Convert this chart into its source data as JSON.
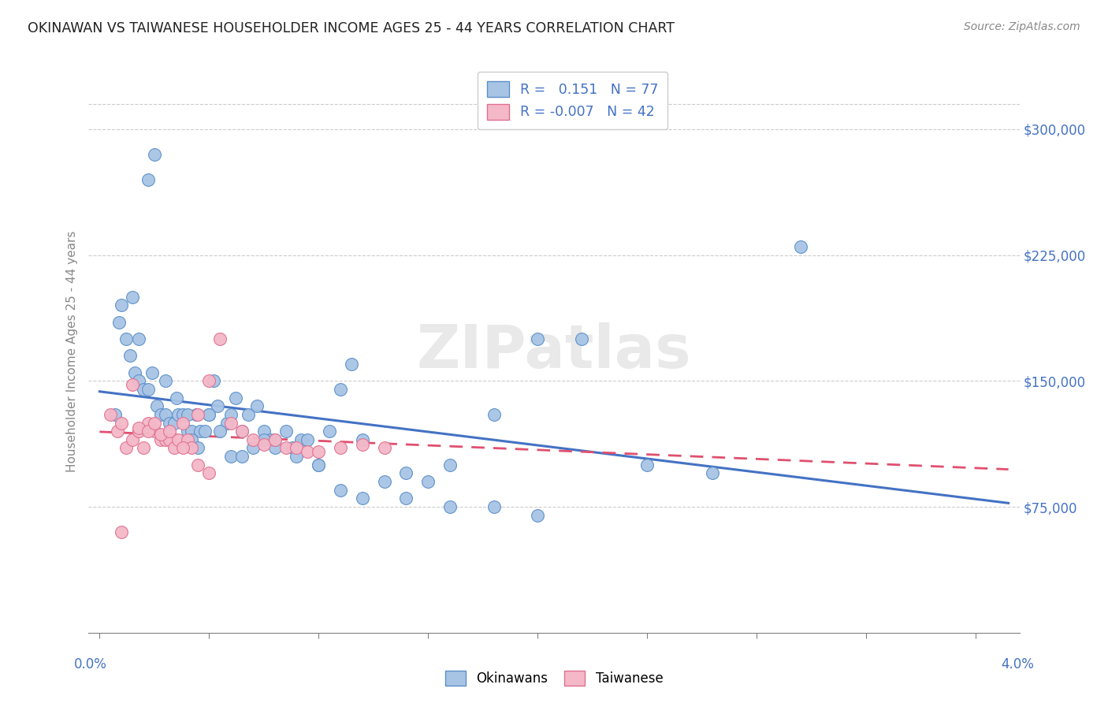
{
  "title": "OKINAWAN VS TAIWANESE HOUSEHOLDER INCOME AGES 25 - 44 YEARS CORRELATION CHART",
  "source": "Source: ZipAtlas.com",
  "ylabel": "Householder Income Ages 25 - 44 years",
  "xlim": [
    -0.05,
    4.2
  ],
  "ylim": [
    0,
    335000
  ],
  "yticks": [
    75000,
    150000,
    225000,
    300000
  ],
  "ytick_labels": [
    "$75,000",
    "$150,000",
    "$225,000",
    "$300,000"
  ],
  "okinawan_fill": "#a8c4e5",
  "taiwanese_fill": "#f4b8c8",
  "okinawan_edge": "#5b8fc9",
  "taiwanese_edge": "#e07090",
  "okinawan_line": "#4472c4",
  "taiwanese_line": "#e05070",
  "ok_x": [
    0.07,
    0.1,
    0.12,
    0.14,
    0.16,
    0.18,
    0.2,
    0.22,
    0.24,
    0.26,
    0.28,
    0.3,
    0.32,
    0.34,
    0.36,
    0.38,
    0.4,
    0.42,
    0.44,
    0.46,
    0.48,
    0.5,
    0.52,
    0.54,
    0.58,
    0.6,
    0.62,
    0.65,
    0.68,
    0.72,
    0.75,
    0.78,
    0.8,
    0.85,
    0.88,
    0.92,
    0.95,
    1.0,
    1.05,
    1.1,
    1.15,
    1.2,
    1.3,
    1.4,
    1.5,
    1.6,
    1.8,
    2.0,
    2.2,
    2.5,
    2.8,
    3.2,
    0.09,
    0.15,
    0.18,
    0.22,
    0.25,
    0.3,
    0.35,
    0.4,
    0.42,
    0.45,
    0.5,
    0.55,
    0.6,
    0.65,
    0.7,
    0.75,
    0.8,
    0.9,
    1.0,
    1.1,
    1.2,
    1.4,
    1.6,
    1.8,
    2.0
  ],
  "ok_y": [
    130000,
    195000,
    175000,
    165000,
    155000,
    150000,
    145000,
    145000,
    155000,
    135000,
    130000,
    130000,
    125000,
    125000,
    130000,
    130000,
    120000,
    120000,
    130000,
    120000,
    120000,
    130000,
    150000,
    135000,
    125000,
    130000,
    140000,
    120000,
    130000,
    135000,
    120000,
    115000,
    110000,
    120000,
    110000,
    115000,
    115000,
    100000,
    120000,
    145000,
    160000,
    115000,
    90000,
    95000,
    90000,
    100000,
    130000,
    175000,
    175000,
    100000,
    95000,
    230000,
    185000,
    200000,
    175000,
    270000,
    285000,
    150000,
    140000,
    130000,
    115000,
    110000,
    130000,
    120000,
    105000,
    105000,
    110000,
    115000,
    115000,
    105000,
    100000,
    85000,
    80000,
    80000,
    75000,
    75000,
    70000
  ],
  "tw_x": [
    0.05,
    0.08,
    0.1,
    0.12,
    0.15,
    0.18,
    0.2,
    0.22,
    0.25,
    0.28,
    0.3,
    0.32,
    0.34,
    0.36,
    0.38,
    0.4,
    0.42,
    0.45,
    0.5,
    0.55,
    0.6,
    0.65,
    0.7,
    0.75,
    0.8,
    0.85,
    0.9,
    0.95,
    1.0,
    1.1,
    1.2,
    1.3,
    0.1,
    0.15,
    0.18,
    0.22,
    0.25,
    0.28,
    0.32,
    0.38,
    0.45,
    0.5
  ],
  "tw_y": [
    130000,
    120000,
    125000,
    110000,
    115000,
    120000,
    110000,
    125000,
    120000,
    115000,
    115000,
    115000,
    110000,
    115000,
    125000,
    115000,
    110000,
    130000,
    150000,
    175000,
    125000,
    120000,
    115000,
    112000,
    115000,
    110000,
    110000,
    108000,
    108000,
    110000,
    112000,
    110000,
    60000,
    148000,
    122000,
    120000,
    125000,
    118000,
    120000,
    110000,
    100000,
    95000
  ]
}
